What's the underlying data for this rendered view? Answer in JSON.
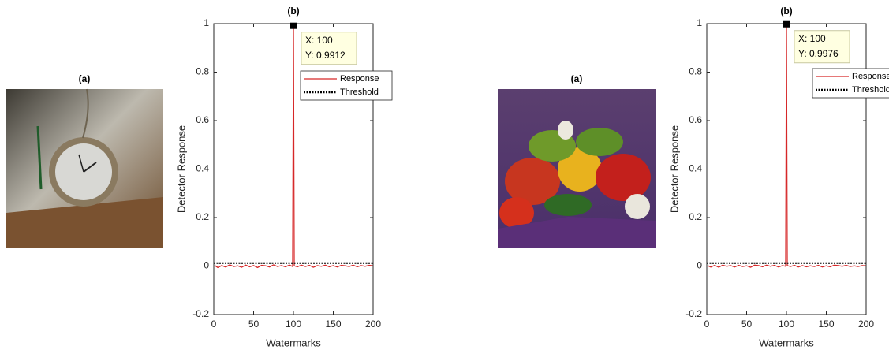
{
  "images": [
    {
      "title": "(a)"
    },
    {
      "title": "(a)"
    }
  ],
  "chart_data": [
    {
      "type": "line",
      "title": "(b)",
      "xlabel": "Watermarks",
      "ylabel": "Detector Response",
      "xlim": [
        0,
        200
      ],
      "ylim": [
        -0.2,
        1
      ],
      "xticks": [
        0,
        50,
        100,
        150,
        200
      ],
      "yticks": [
        -0.2,
        0,
        0.2,
        0.4,
        0.6,
        0.8,
        1
      ],
      "series": [
        {
          "name": "Response",
          "color": "#d62728",
          "style": "solid",
          "x": [
            1,
            5,
            10,
            15,
            20,
            25,
            30,
            35,
            40,
            45,
            50,
            55,
            60,
            65,
            70,
            75,
            80,
            85,
            90,
            95,
            99,
            100,
            101,
            105,
            110,
            115,
            120,
            125,
            130,
            135,
            140,
            145,
            150,
            155,
            160,
            165,
            170,
            175,
            180,
            185,
            190,
            195,
            200
          ],
          "values": [
            0.003,
            -0.006,
            0.002,
            -0.004,
            0.005,
            -0.002,
            0.001,
            -0.005,
            0.004,
            -0.003,
            0.002,
            -0.006,
            0.003,
            0.001,
            -0.004,
            0.005,
            -0.002,
            0.002,
            -0.003,
            0.004,
            -0.002,
            0.9912,
            0.001,
            -0.003,
            0.004,
            -0.002,
            0.003,
            -0.005,
            0.002,
            -0.001,
            0.004,
            -0.003,
            0.002,
            -0.004,
            0.003,
            0.001,
            -0.002,
            0.004,
            -0.003,
            0.002,
            -0.001,
            0.003,
            0.001
          ]
        },
        {
          "name": "Threshold",
          "color": "#000000",
          "style": "dotted",
          "x": [
            0,
            200
          ],
          "values": [
            0.012,
            0.012
          ]
        }
      ],
      "datatip": {
        "series": 0,
        "index": 21,
        "lines": [
          "X: 100",
          "Y: 0.9912"
        ]
      }
    },
    {
      "type": "line",
      "title": "(b)",
      "xlabel": "Watermarks",
      "ylabel": "Detector Response",
      "xlim": [
        0,
        200
      ],
      "ylim": [
        -0.2,
        1
      ],
      "xticks": [
        0,
        50,
        100,
        150,
        200
      ],
      "yticks": [
        -0.2,
        0,
        0.2,
        0.4,
        0.6,
        0.8,
        1
      ],
      "series": [
        {
          "name": "Response",
          "color": "#d62728",
          "style": "solid",
          "x": [
            1,
            5,
            10,
            15,
            20,
            25,
            30,
            35,
            40,
            45,
            50,
            55,
            60,
            65,
            70,
            75,
            80,
            85,
            90,
            95,
            99,
            100,
            101,
            105,
            110,
            115,
            120,
            125,
            130,
            135,
            140,
            145,
            150,
            155,
            160,
            165,
            170,
            175,
            180,
            185,
            190,
            195,
            200
          ],
          "values": [
            0.002,
            -0.004,
            0.003,
            -0.005,
            0.004,
            -0.001,
            0.002,
            -0.004,
            0.003,
            -0.002,
            0.001,
            -0.005,
            0.004,
            0.002,
            -0.003,
            0.004,
            -0.001,
            0.003,
            -0.004,
            0.002,
            -0.001,
            0.9976,
            0.002,
            -0.002,
            0.003,
            -0.004,
            0.002,
            -0.003,
            0.001,
            -0.002,
            0.003,
            -0.004,
            0.001,
            -0.003,
            0.004,
            0.002,
            -0.001,
            0.003,
            -0.002,
            0.001,
            -0.002,
            0.002,
            0.001
          ]
        },
        {
          "name": "Threshold",
          "color": "#000000",
          "style": "dotted",
          "x": [
            0,
            200
          ],
          "values": [
            0.012,
            0.012
          ]
        }
      ],
      "datatip": {
        "series": 0,
        "index": 21,
        "lines": [
          "X: 100",
          "Y: 0.9976"
        ]
      }
    }
  ]
}
